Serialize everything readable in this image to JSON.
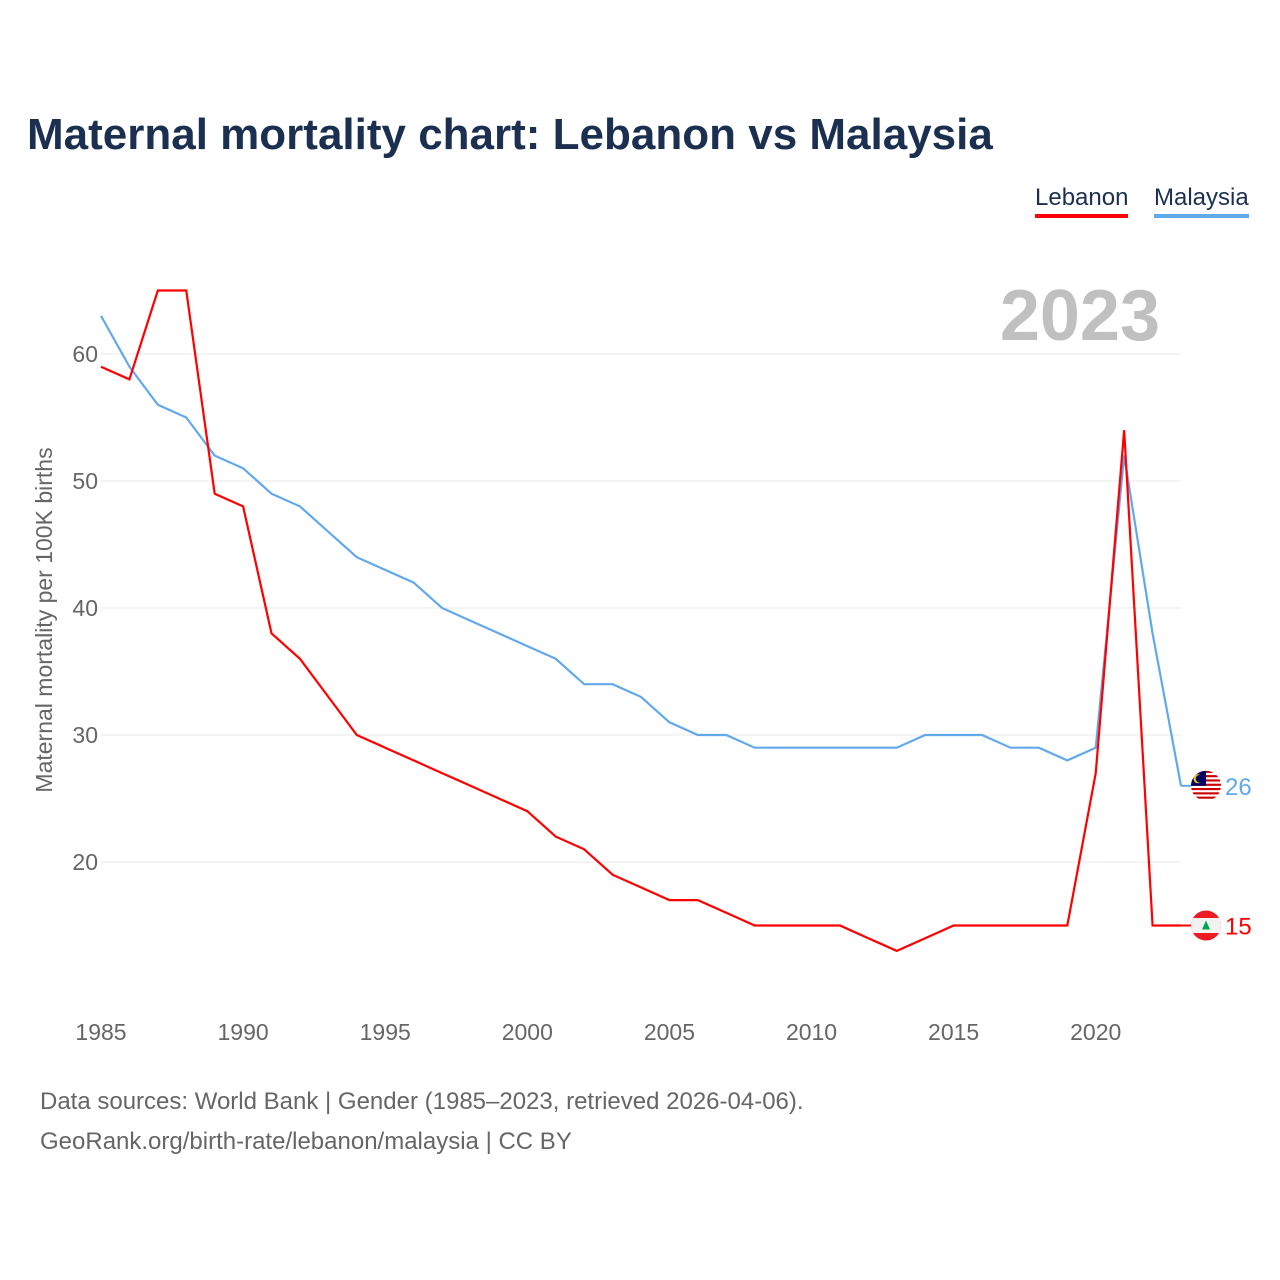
{
  "title": "Maternal mortality chart: Lebanon vs Malaysia",
  "footer": {
    "line1": "Data sources: World Bank | Gender (1985–2023, retrieved 2026-04-06).",
    "line2": "GeoRank.org/birth-rate/lebanon/malaysia | CC BY"
  },
  "chart_data": {
    "type": "line",
    "title": "Maternal mortality chart: Lebanon vs Malaysia",
    "year_label": "2023",
    "xlabel": "",
    "ylabel": "Maternal mortality per 100K births",
    "xlim": [
      1985,
      2023
    ],
    "ylim": [
      10,
      65
    ],
    "x_ticks": [
      1985,
      1990,
      1995,
      2000,
      2005,
      2010,
      2015,
      2020
    ],
    "y_ticks": [
      20,
      30,
      40,
      50,
      60
    ],
    "grid": true,
    "legend_position": "top-right",
    "x": [
      1985,
      1986,
      1987,
      1988,
      1989,
      1990,
      1991,
      1992,
      1993,
      1994,
      1995,
      1996,
      1997,
      1998,
      1999,
      2000,
      2001,
      2002,
      2003,
      2004,
      2005,
      2006,
      2007,
      2008,
      2009,
      2010,
      2011,
      2012,
      2013,
      2014,
      2015,
      2016,
      2017,
      2018,
      2019,
      2020,
      2021,
      2022,
      2023
    ],
    "series": [
      {
        "name": "Lebanon",
        "color": "#ff0000",
        "flag": "lebanon-flag",
        "end_label": "15",
        "values": [
          59,
          58,
          65,
          65,
          49,
          48,
          38,
          36,
          33,
          30,
          29,
          28,
          27,
          26,
          25,
          24,
          22,
          21,
          19,
          18,
          17,
          17,
          16,
          15,
          15,
          15,
          15,
          14,
          13,
          14,
          15,
          15,
          15,
          15,
          15,
          27,
          54,
          15,
          15
        ]
      },
      {
        "name": "Malaysia",
        "color": "#62a8ec",
        "flag": "malaysia-flag",
        "end_label": "26",
        "values": [
          63,
          59,
          56,
          55,
          52,
          51,
          49,
          48,
          46,
          44,
          43,
          42,
          40,
          39,
          38,
          37,
          36,
          34,
          34,
          33,
          31,
          30,
          30,
          29,
          29,
          29,
          29,
          29,
          29,
          30,
          30,
          30,
          29,
          29,
          28,
          29,
          52,
          38,
          26
        ]
      }
    ]
  }
}
